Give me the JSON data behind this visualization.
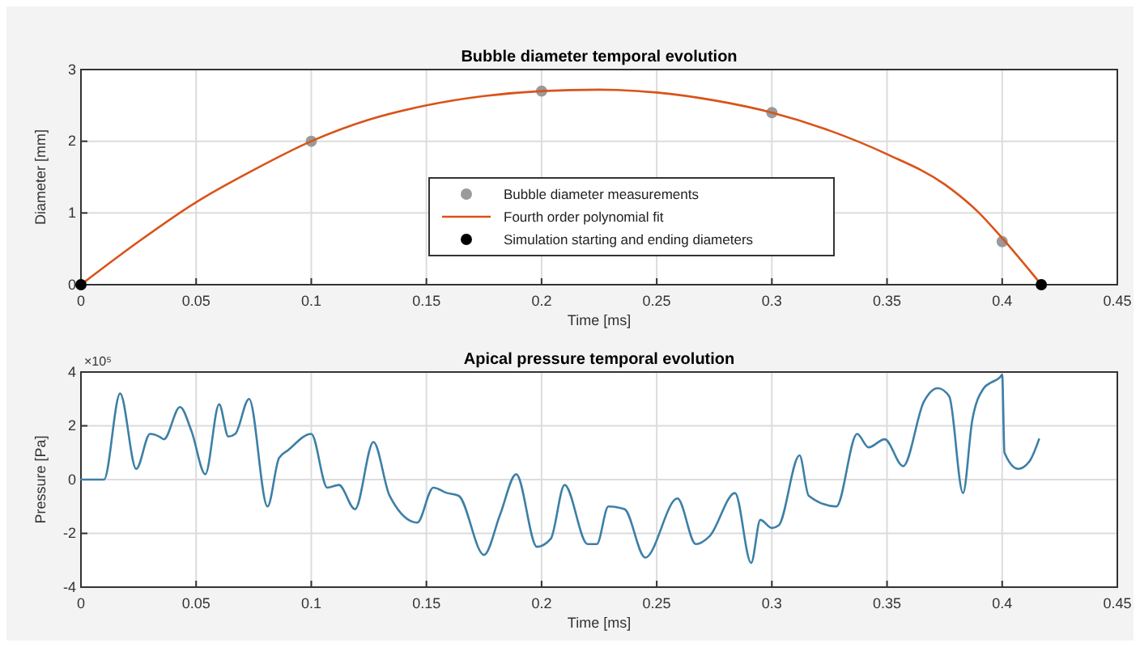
{
  "chart_data": [
    {
      "type": "line",
      "title": "Bubble diameter temporal evolution",
      "xlabel": "Time [ms]",
      "ylabel": "Diameter [mm]",
      "xlim": [
        0,
        0.45
      ],
      "xticks": [
        0,
        0.05,
        0.1,
        0.15,
        0.2,
        0.25,
        0.3,
        0.35,
        0.4,
        0.45
      ],
      "ylim": [
        0,
        3
      ],
      "yticks": [
        0,
        1,
        2,
        3
      ],
      "grid": true,
      "legend": "bottom",
      "series": [
        {
          "name": "Bubble diameter measurements",
          "type": "scatter",
          "marker": "circle",
          "color": "#9a9a9a",
          "x": [
            0.1,
            0.2,
            0.3,
            0.4
          ],
          "values": [
            2.0,
            2.7,
            2.4,
            0.6
          ]
        },
        {
          "name": "Fourth order polynomial fit",
          "type": "line",
          "color": "#d95319",
          "x": [
            0,
            0.025,
            0.05,
            0.075,
            0.1,
            0.125,
            0.15,
            0.175,
            0.2,
            0.225,
            0.25,
            0.275,
            0.3,
            0.325,
            0.35,
            0.375,
            0.39,
            0.4,
            0.417
          ],
          "values": [
            0,
            0.6,
            1.15,
            1.6,
            2.0,
            2.3,
            2.5,
            2.63,
            2.7,
            2.72,
            2.68,
            2.57,
            2.4,
            2.15,
            1.82,
            1.4,
            1.0,
            0.65,
            0
          ]
        },
        {
          "name": "Simulation starting and ending diameters",
          "type": "scatter",
          "marker": "circle",
          "color": "#000000",
          "x": [
            0,
            0.417
          ],
          "values": [
            0,
            0
          ]
        }
      ]
    },
    {
      "type": "line",
      "title": "Apical pressure temporal evolution",
      "xlabel": "Time [ms]",
      "ylabel": "Pressure [Pa]",
      "xlim": [
        0,
        0.45
      ],
      "xticks": [
        0,
        0.05,
        0.1,
        0.15,
        0.2,
        0.25,
        0.3,
        0.35,
        0.4,
        0.45
      ],
      "ylim": [
        -4,
        4
      ],
      "yticks": [
        -4,
        -2,
        0,
        2,
        4
      ],
      "grid": true,
      "annotations": [
        "×10⁵"
      ],
      "series": [
        {
          "color": "#3d7fa6",
          "x": [
            0,
            0.01,
            0.017,
            0.024,
            0.03,
            0.034,
            0.036,
            0.043,
            0.048,
            0.054,
            0.06,
            0.064,
            0.067,
            0.073,
            0.081,
            0.086,
            0.09,
            0.1,
            0.107,
            0.112,
            0.119,
            0.127,
            0.134,
            0.146,
            0.153,
            0.159,
            0.164,
            0.175,
            0.182,
            0.189,
            0.198,
            0.204,
            0.21,
            0.22,
            0.224,
            0.229,
            0.236,
            0.245,
            0.259,
            0.267,
            0.273,
            0.284,
            0.291,
            0.295,
            0.3,
            0.303,
            0.312,
            0.316,
            0.328,
            0.337,
            0.342,
            0.349,
            0.357,
            0.366,
            0.372,
            0.377,
            0.383,
            0.387,
            0.392,
            0.395,
            0.399,
            0.4,
            0.401,
            0.407,
            0.412,
            0.416
          ],
          "values": [
            0,
            0,
            3.2,
            0.4,
            1.7,
            1.6,
            1.5,
            2.7,
            1.8,
            0.2,
            2.8,
            1.6,
            1.7,
            3.0,
            -1.0,
            0.8,
            1.1,
            1.7,
            -0.3,
            -0.2,
            -1.1,
            1.4,
            -0.6,
            -1.6,
            -0.3,
            -0.5,
            -0.6,
            -2.8,
            -1.3,
            0.2,
            -2.5,
            -2.2,
            -0.2,
            -2.4,
            -2.4,
            -1.0,
            -1.1,
            -2.9,
            -0.7,
            -2.4,
            -2.1,
            -0.5,
            -3.1,
            -1.5,
            -1.8,
            -1.7,
            0.9,
            -0.6,
            -1.0,
            1.7,
            1.2,
            1.5,
            0.5,
            2.9,
            3.4,
            3.1,
            -0.5,
            2.2,
            3.4,
            3.6,
            3.8,
            3.9,
            1.0,
            0.4,
            0.7,
            1.5
          ]
        }
      ]
    }
  ]
}
